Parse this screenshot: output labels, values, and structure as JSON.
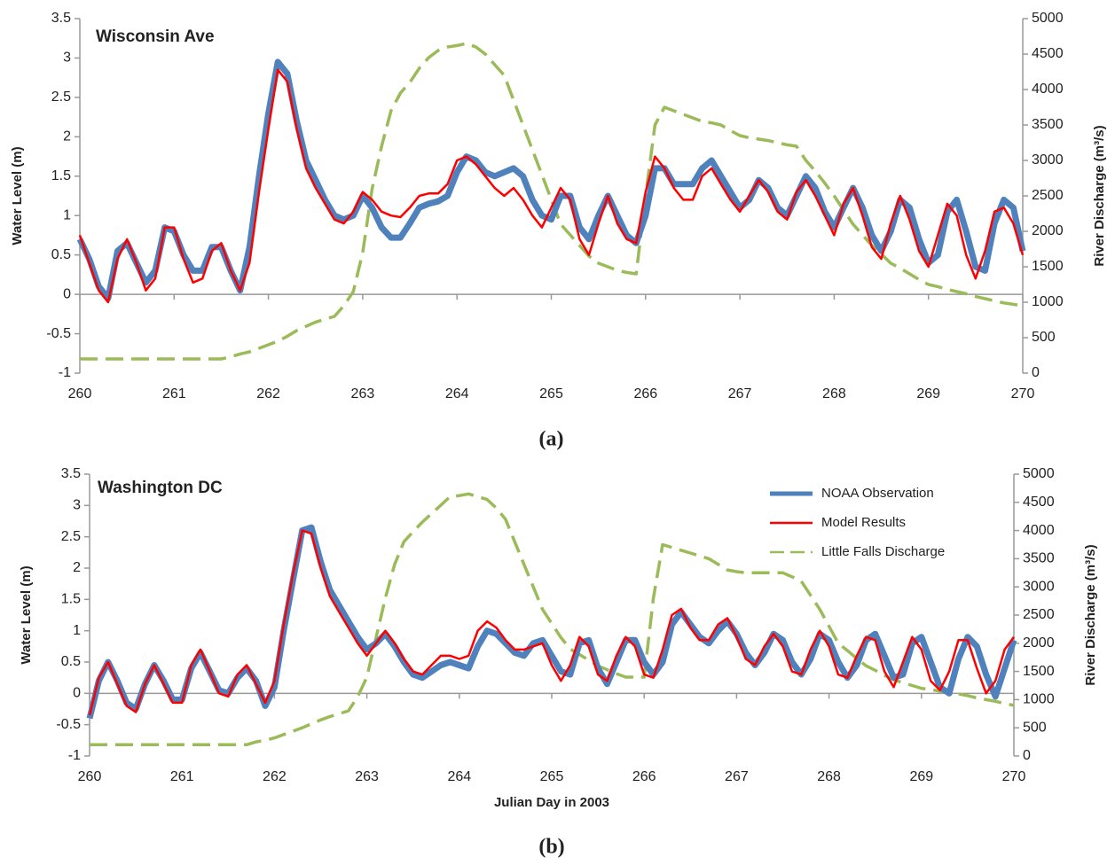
{
  "chart_data": [
    {
      "type": "line",
      "title": "Wisconsin Ave",
      "caption": "(a)",
      "ylabel": "Water Level (m)",
      "y2label": "River Discharge (m³/s)",
      "x": [
        260,
        260.1,
        260.2,
        260.3,
        260.4,
        260.5,
        260.6,
        260.7,
        260.8,
        260.9,
        261,
        261.1,
        261.2,
        261.3,
        261.4,
        261.5,
        261.6,
        261.7,
        261.8,
        261.9,
        262,
        262.1,
        262.2,
        262.3,
        262.4,
        262.5,
        262.6,
        262.7,
        262.8,
        262.9,
        263,
        263.1,
        263.2,
        263.3,
        263.4,
        263.5,
        263.6,
        263.7,
        263.8,
        263.9,
        264,
        264.1,
        264.2,
        264.3,
        264.4,
        264.5,
        264.6,
        264.7,
        264.8,
        264.9,
        265,
        265.1,
        265.2,
        265.3,
        265.4,
        265.5,
        265.6,
        265.7,
        265.8,
        265.9,
        266,
        266.1,
        266.2,
        266.3,
        266.4,
        266.5,
        266.6,
        266.7,
        266.8,
        266.9,
        267,
        267.1,
        267.2,
        267.3,
        267.4,
        267.5,
        267.6,
        267.7,
        267.8,
        267.9,
        268,
        268.1,
        268.2,
        268.3,
        268.4,
        268.5,
        268.6,
        268.7,
        268.8,
        268.9,
        269,
        269.1,
        269.2,
        269.3,
        269.4,
        269.5,
        269.6,
        269.7,
        269.8,
        269.9,
        270
      ],
      "series": [
        {
          "name": "NOAA Observation",
          "color": "#4f81bd",
          "values": [
            0.7,
            0.45,
            0.1,
            -0.05,
            0.55,
            0.65,
            0.4,
            0.15,
            0.3,
            0.85,
            0.8,
            0.5,
            0.3,
            0.3,
            0.6,
            0.6,
            0.3,
            0.05,
            0.6,
            1.5,
            2.3,
            2.95,
            2.8,
            2.2,
            1.7,
            1.45,
            1.2,
            1.0,
            0.95,
            1.0,
            1.25,
            1.1,
            0.85,
            0.72,
            0.72,
            0.9,
            1.1,
            1.15,
            1.18,
            1.25,
            1.55,
            1.75,
            1.7,
            1.55,
            1.5,
            1.55,
            1.6,
            1.5,
            1.2,
            1.0,
            0.95,
            1.25,
            1.25,
            0.85,
            0.7,
            1.0,
            1.25,
            1.0,
            0.75,
            0.65,
            1.0,
            1.6,
            1.6,
            1.4,
            1.4,
            1.4,
            1.6,
            1.7,
            1.5,
            1.3,
            1.1,
            1.2,
            1.45,
            1.35,
            1.1,
            1.0,
            1.25,
            1.5,
            1.35,
            1.05,
            0.85,
            1.1,
            1.35,
            1.1,
            0.75,
            0.55,
            0.8,
            1.2,
            1.1,
            0.7,
            0.4,
            0.5,
            1.05,
            1.2,
            0.8,
            0.35,
            0.3,
            0.9,
            1.2,
            1.1,
            0.55
          ]
        },
        {
          "name": "Model Results",
          "color": "#ff0000",
          "values": [
            0.75,
            0.4,
            0.05,
            -0.1,
            0.45,
            0.7,
            0.4,
            0.05,
            0.2,
            0.85,
            0.85,
            0.45,
            0.15,
            0.2,
            0.55,
            0.65,
            0.3,
            0.05,
            0.4,
            1.3,
            2.1,
            2.85,
            2.7,
            2.1,
            1.6,
            1.35,
            1.15,
            0.95,
            0.9,
            1.05,
            1.3,
            1.2,
            1.05,
            1.0,
            0.98,
            1.1,
            1.25,
            1.28,
            1.28,
            1.4,
            1.7,
            1.75,
            1.65,
            1.5,
            1.35,
            1.25,
            1.35,
            1.2,
            1.0,
            0.85,
            1.1,
            1.35,
            1.2,
            0.7,
            0.5,
            0.9,
            1.25,
            0.9,
            0.7,
            0.65,
            1.3,
            1.75,
            1.6,
            1.35,
            1.2,
            1.2,
            1.5,
            1.6,
            1.4,
            1.2,
            1.05,
            1.25,
            1.45,
            1.3,
            1.05,
            0.95,
            1.3,
            1.45,
            1.25,
            1.0,
            0.75,
            1.15,
            1.35,
            1.0,
            0.6,
            0.45,
            0.9,
            1.25,
            0.95,
            0.55,
            0.35,
            0.75,
            1.15,
            1.0,
            0.5,
            0.2,
            0.55,
            1.05,
            1.1,
            0.9,
            0.5
          ]
        },
        {
          "name": "Little Falls Discharge",
          "color": "#9bbb59",
          "axis": "y2",
          "dashed": true,
          "values": [
            200,
            200,
            200,
            200,
            200,
            200,
            200,
            200,
            200,
            200,
            200,
            200,
            200,
            200,
            200,
            200,
            230,
            270,
            300,
            350,
            400,
            450,
            520,
            600,
            660,
            720,
            760,
            800,
            950,
            1150,
            1700,
            2600,
            3200,
            3700,
            3950,
            4100,
            4300,
            4450,
            4550,
            4600,
            4620,
            4650,
            4600,
            4500,
            4350,
            4200,
            3850,
            3500,
            3150,
            2800,
            2450,
            2100,
            1950,
            1800,
            1650,
            1550,
            1500,
            1450,
            1420,
            1400,
            2500,
            3500,
            3750,
            3700,
            3650,
            3600,
            3550,
            3530,
            3500,
            3420,
            3350,
            3320,
            3300,
            3280,
            3250,
            3220,
            3200,
            3000,
            2850,
            2680,
            2500,
            2300,
            2100,
            1950,
            1800,
            1680,
            1550,
            1480,
            1400,
            1320,
            1250,
            1220,
            1180,
            1150,
            1120,
            1080,
            1050,
            1020,
            990,
            970,
            950
          ]
        }
      ],
      "xlim": [
        260,
        270
      ],
      "xticks": [
        260,
        261,
        262,
        263,
        264,
        265,
        266,
        267,
        268,
        269,
        270
      ],
      "ylim": [
        -1,
        3.5
      ],
      "yticks": [
        -1,
        -0.5,
        0,
        0.5,
        1,
        1.5,
        2,
        2.5,
        3,
        3.5
      ],
      "y2lim": [
        0,
        5000
      ],
      "y2ticks": [
        0,
        500,
        1000,
        1500,
        2000,
        2500,
        3000,
        3500,
        4000,
        4500,
        5000
      ],
      "grid": false,
      "legend": false
    },
    {
      "type": "line",
      "title": "Washington DC",
      "caption": "(b)",
      "xlabel": "Julian Day in 2003",
      "ylabel": "Water Level (m)",
      "y2label": "River Discharge (m³/s)",
      "x": [
        260,
        260.1,
        260.2,
        260.3,
        260.4,
        260.5,
        260.6,
        260.7,
        260.8,
        260.9,
        261,
        261.1,
        261.2,
        261.3,
        261.4,
        261.5,
        261.6,
        261.7,
        261.8,
        261.9,
        262,
        262.1,
        262.2,
        262.3,
        262.4,
        262.5,
        262.6,
        262.7,
        262.8,
        262.9,
        263,
        263.1,
        263.2,
        263.3,
        263.4,
        263.5,
        263.6,
        263.7,
        263.8,
        263.9,
        264,
        264.1,
        264.2,
        264.3,
        264.4,
        264.5,
        264.6,
        264.7,
        264.8,
        264.9,
        265,
        265.1,
        265.2,
        265.3,
        265.4,
        265.5,
        265.6,
        265.7,
        265.8,
        265.9,
        266,
        266.1,
        266.2,
        266.3,
        266.4,
        266.5,
        266.6,
        266.7,
        266.8,
        266.9,
        267,
        267.1,
        267.2,
        267.3,
        267.4,
        267.5,
        267.6,
        267.7,
        267.8,
        267.9,
        268,
        268.1,
        268.2,
        268.3,
        268.4,
        268.5,
        268.6,
        268.7,
        268.8,
        268.9,
        269,
        269.1,
        269.2,
        269.3,
        269.4,
        269.5,
        269.6,
        269.7,
        269.8,
        269.9,
        270
      ],
      "series": [
        {
          "name": "NOAA Observation",
          "color": "#4f81bd",
          "values": [
            -0.4,
            0.2,
            0.5,
            0.2,
            -0.15,
            -0.25,
            0.15,
            0.45,
            0.2,
            -0.1,
            -0.1,
            0.4,
            0.65,
            0.35,
            0.05,
            0.0,
            0.25,
            0.4,
            0.2,
            -0.2,
            0.1,
            1.0,
            1.8,
            2.6,
            2.65,
            2.1,
            1.65,
            1.4,
            1.15,
            0.9,
            0.7,
            0.8,
            0.95,
            0.75,
            0.5,
            0.3,
            0.25,
            0.35,
            0.45,
            0.5,
            0.45,
            0.4,
            0.75,
            1.0,
            0.95,
            0.8,
            0.65,
            0.6,
            0.8,
            0.85,
            0.6,
            0.35,
            0.3,
            0.8,
            0.85,
            0.4,
            0.15,
            0.5,
            0.85,
            0.85,
            0.5,
            0.3,
            0.5,
            1.1,
            1.3,
            1.1,
            0.9,
            0.8,
            1.0,
            1.15,
            0.95,
            0.65,
            0.45,
            0.65,
            0.95,
            0.85,
            0.5,
            0.3,
            0.55,
            0.95,
            0.85,
            0.5,
            0.25,
            0.45,
            0.85,
            0.95,
            0.6,
            0.25,
            0.3,
            0.8,
            0.9,
            0.5,
            0.1,
            0.0,
            0.55,
            0.9,
            0.75,
            0.3,
            -0.05,
            0.4,
            0.85
          ]
        },
        {
          "name": "Model Results",
          "color": "#ff0000",
          "values": [
            -0.35,
            0.25,
            0.5,
            0.15,
            -0.2,
            -0.3,
            0.15,
            0.45,
            0.15,
            -0.15,
            -0.15,
            0.45,
            0.7,
            0.35,
            0.0,
            -0.05,
            0.3,
            0.45,
            0.15,
            -0.15,
            0.2,
            1.1,
            1.9,
            2.6,
            2.55,
            2.0,
            1.55,
            1.3,
            1.05,
            0.8,
            0.6,
            0.8,
            1.0,
            0.8,
            0.55,
            0.35,
            0.3,
            0.45,
            0.6,
            0.6,
            0.55,
            0.6,
            1.0,
            1.15,
            1.05,
            0.85,
            0.7,
            0.7,
            0.75,
            0.8,
            0.45,
            0.2,
            0.45,
            0.9,
            0.75,
            0.3,
            0.2,
            0.6,
            0.9,
            0.75,
            0.3,
            0.25,
            0.7,
            1.25,
            1.35,
            1.05,
            0.85,
            0.85,
            1.1,
            1.2,
            0.9,
            0.55,
            0.45,
            0.75,
            0.95,
            0.75,
            0.35,
            0.3,
            0.7,
            1.0,
            0.75,
            0.3,
            0.25,
            0.6,
            0.9,
            0.85,
            0.35,
            0.1,
            0.5,
            0.9,
            0.7,
            0.2,
            0.05,
            0.35,
            0.85,
            0.85,
            0.4,
            0.0,
            0.2,
            0.7,
            0.9
          ]
        },
        {
          "name": "Little Falls Discharge",
          "color": "#9bbb59",
          "axis": "y2",
          "dashed": true,
          "values": [
            200,
            200,
            200,
            200,
            200,
            200,
            200,
            200,
            200,
            200,
            200,
            200,
            200,
            200,
            200,
            200,
            200,
            200,
            250,
            280,
            320,
            380,
            440,
            500,
            570,
            640,
            700,
            750,
            800,
            1050,
            1400,
            2100,
            2800,
            3400,
            3800,
            3980,
            4150,
            4300,
            4450,
            4600,
            4620,
            4650,
            4600,
            4550,
            4400,
            4200,
            3800,
            3400,
            3000,
            2600,
            2350,
            2100,
            1900,
            1800,
            1700,
            1600,
            1530,
            1460,
            1400,
            1400,
            1400,
            2800,
            3750,
            3700,
            3650,
            3600,
            3550,
            3500,
            3400,
            3300,
            3270,
            3250,
            3250,
            3250,
            3250,
            3250,
            3180,
            3100,
            2850,
            2600,
            2300,
            2000,
            1870,
            1730,
            1600,
            1520,
            1430,
            1350,
            1300,
            1250,
            1200,
            1180,
            1150,
            1120,
            1100,
            1070,
            1030,
            1000,
            970,
            930,
            900
          ]
        }
      ],
      "xlim": [
        260,
        270
      ],
      "xticks": [
        260,
        261,
        262,
        263,
        264,
        265,
        266,
        267,
        268,
        269,
        270
      ],
      "ylim": [
        -1,
        3.5
      ],
      "yticks": [
        -1,
        -0.5,
        0,
        0.5,
        1,
        1.5,
        2,
        2.5,
        3,
        3.5
      ],
      "y2lim": [
        0,
        5000
      ],
      "y2ticks": [
        0,
        500,
        1000,
        1500,
        2000,
        2500,
        3000,
        3500,
        4000,
        4500,
        5000
      ],
      "grid": false,
      "legend": true,
      "legend_position": "upper right"
    }
  ]
}
